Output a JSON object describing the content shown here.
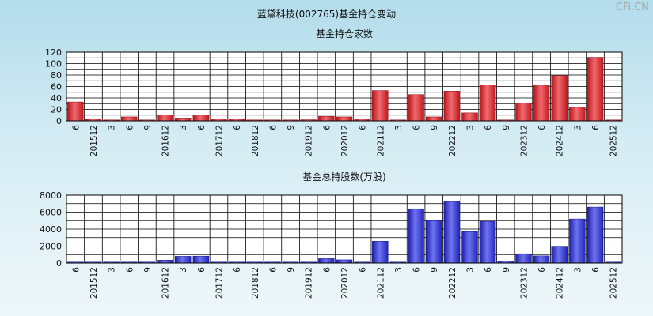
{
  "header": {
    "title": "蓝黛科技(002765)基金持仓变动",
    "watermark": "CFi.CN"
  },
  "colors": {
    "bar_top_chart": "#e8393f",
    "bar_bottom_chart": "#3b40d8",
    "grid": "#000000"
  },
  "chart_data": [
    {
      "type": "bar",
      "title": "基金持仓家数",
      "ylim": [
        0,
        120
      ],
      "yticks": [
        0,
        20,
        40,
        60,
        80,
        100,
        120
      ],
      "categories": [
        "6",
        "201512",
        "3",
        "6",
        "9",
        "201612",
        "3",
        "6",
        "201712",
        "6",
        "201812",
        "6",
        "9",
        "201912",
        "6",
        "202012",
        "6",
        "202112",
        "3",
        "6",
        "9",
        "202212",
        "3",
        "6",
        "9",
        "202312",
        "6",
        "202412",
        "3",
        "6",
        "202512"
      ],
      "values": [
        33,
        3,
        1,
        7,
        1,
        10,
        5,
        10,
        3,
        3,
        1,
        1,
        1,
        2,
        8,
        7,
        3,
        53,
        1,
        46,
        7,
        52,
        14,
        63,
        1,
        31,
        63,
        79,
        24,
        111,
        1
      ]
    },
    {
      "type": "bar",
      "title": "基金总持股数(万股)",
      "ylim": [
        0,
        8000
      ],
      "yticks": [
        0,
        2000,
        4000,
        6000,
        8000
      ],
      "categories": [
        "6",
        "201512",
        "3",
        "6",
        "9",
        "201612",
        "3",
        "6",
        "201712",
        "6",
        "201812",
        "6",
        "9",
        "201912",
        "6",
        "202012",
        "6",
        "202112",
        "3",
        "6",
        "9",
        "202212",
        "3",
        "6",
        "9",
        "202312",
        "6",
        "202412",
        "3",
        "6",
        "202512"
      ],
      "values": [
        40,
        20,
        20,
        30,
        20,
        350,
        800,
        820,
        30,
        40,
        20,
        30,
        20,
        20,
        520,
        380,
        20,
        2580,
        20,
        6400,
        5000,
        7250,
        3700,
        4900,
        250,
        1100,
        850,
        1900,
        5200,
        6600,
        20
      ]
    }
  ]
}
